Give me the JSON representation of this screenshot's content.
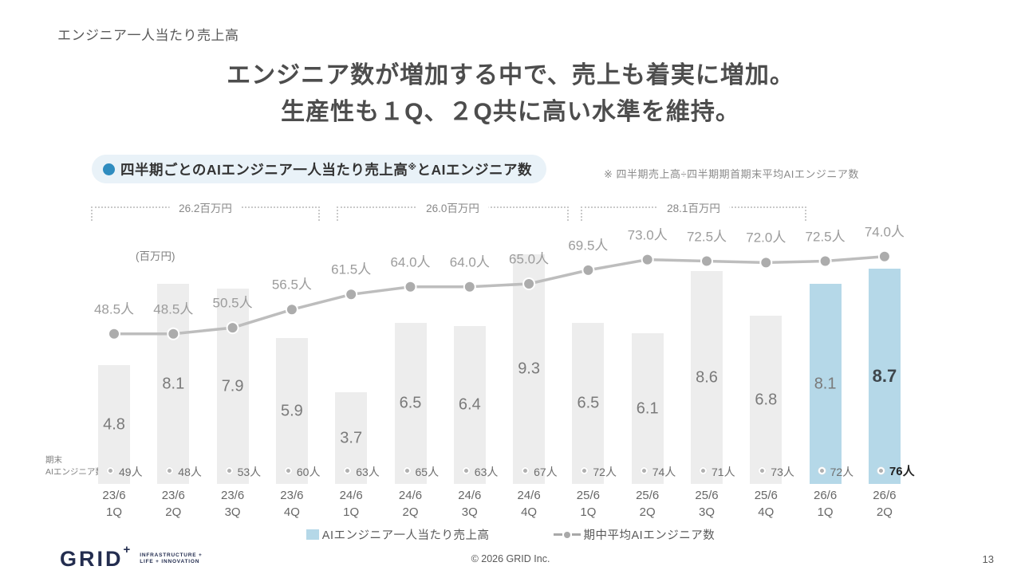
{
  "slide": {
    "kicker": "エンジニア一人当たり売上高",
    "headline_line1": "エンジニア数が増加する中で、売上も着実に増加。",
    "headline_line2": "生産性も１Q、２Q共に高い水準を維持。"
  },
  "chart_header": {
    "badge_label_prefix": "四半期ごとのAIエンジニア一人当たり売上高",
    "badge_note_marker": "※",
    "badge_label_suffix": "とAIエンジニア数",
    "note": "※ 四半期売上高÷四半期期首期末平均AIエンジニア数"
  },
  "chart_data": {
    "type": "bar",
    "title": "四半期ごとのAIエンジニア一人当たり売上高とAIエンジニア数",
    "categories": [
      "23/6 1Q",
      "23/6 2Q",
      "23/6 3Q",
      "23/6 4Q",
      "24/6 1Q",
      "24/6 2Q",
      "24/6 3Q",
      "24/6 4Q",
      "25/6 1Q",
      "25/6 2Q",
      "25/6 3Q",
      "25/6 4Q",
      "26/6 1Q",
      "26/6 2Q"
    ],
    "ylabel": "(百万円)",
    "axis_side_label_line1": "期末",
    "axis_side_label_line2": "AIエンジニア数",
    "series": [
      {
        "name": "AIエンジニア一人当たり売上高",
        "type": "bar",
        "unit": "百万円",
        "values": [
          4.8,
          8.1,
          7.9,
          5.9,
          3.7,
          6.5,
          6.4,
          9.3,
          6.5,
          6.1,
          8.6,
          6.8,
          8.1,
          8.7
        ],
        "highlighted_indices": [
          12,
          13
        ],
        "emphasized_index": 13
      },
      {
        "name": "期中平均AIエンジニア数",
        "type": "line",
        "unit": "人",
        "values": [
          48.5,
          48.5,
          50.5,
          56.5,
          61.5,
          64.0,
          64.0,
          65.0,
          69.5,
          73.0,
          72.5,
          72.0,
          72.5,
          74.0
        ]
      },
      {
        "name": "期末AIエンジニア数",
        "type": "point",
        "unit": "人",
        "values": [
          49,
          48,
          53,
          60,
          63,
          65,
          63,
          67,
          72,
          74,
          71,
          73,
          72,
          76
        ],
        "emphasized_index": 13
      }
    ],
    "annotations": [
      {
        "label": "26.2百万円",
        "from": 0,
        "to": 3
      },
      {
        "label": "26.0百万円",
        "from": 4,
        "to": 7
      },
      {
        "label": "28.1百万円",
        "from": 8,
        "to": 11
      }
    ],
    "legend_position": "bottom",
    "grid": false
  },
  "legend": {
    "bar_label": "AIエンジニア一人当たり売上高",
    "line_label": "期中平均AIエンジニア数"
  },
  "footer": {
    "logo_text": "GRID",
    "logo_plus": "+",
    "tagline_line1": "INFRASTRUCTURE +",
    "tagline_line2": "LIFE + INNOVATION",
    "copyright": "© 2026 GRID Inc.",
    "page_number": "13"
  },
  "colors": {
    "bar_gray": "#EDEDED",
    "bar_blue": "#B5D8E8",
    "line_gray": "#BDBDBD",
    "marker_gray": "#ACACAC",
    "accent_blue": "#2F8CBF",
    "badge_bg": "#E9F2F8",
    "logo_navy": "#232D4F"
  }
}
